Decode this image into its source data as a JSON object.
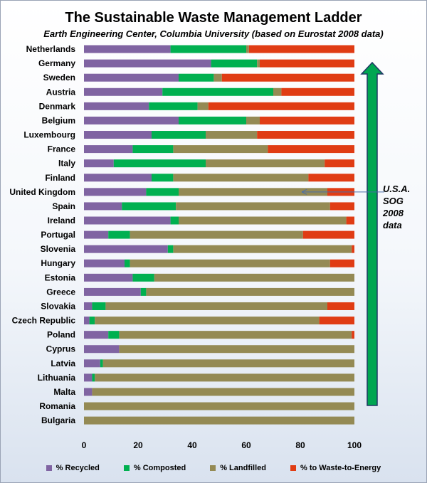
{
  "chart_data": {
    "type": "bar",
    "orientation": "horizontal",
    "stacked": true,
    "title": "The Sustainable Waste Management Ladder",
    "subtitle": "Earth Engineering Center, Columbia University (based on Eurostat 2008 data)",
    "categories": [
      "Netherlands",
      "Germany",
      "Sweden",
      "Austria",
      "Denmark",
      "Belgium",
      "Luxembourg",
      "France",
      "Italy",
      "Finland",
      "United Kingdom",
      "Spain",
      "Ireland",
      "Portugal",
      "Slovenia",
      "Hungary",
      "Estonia",
      "Greece",
      "Slovakia",
      "Czech Republic",
      "Poland",
      "Cyprus",
      "Latvia",
      "Lithuania",
      "Malta",
      "Romania",
      "Bulgaria"
    ],
    "series": [
      {
        "name": "% Recycled",
        "color": "#8064a2",
        "values": [
          32,
          47,
          35,
          29,
          24,
          35,
          25,
          18,
          11,
          25,
          23,
          14,
          32,
          9,
          31,
          15,
          18,
          21,
          3,
          2,
          9,
          13,
          6,
          3,
          3,
          0,
          0
        ]
      },
      {
        "name": "% Composted",
        "color": "#00b050",
        "values": [
          28,
          17,
          13,
          41,
          18,
          25,
          20,
          15,
          34,
          8,
          12,
          20,
          3,
          8,
          2,
          2,
          8,
          2,
          5,
          2,
          4,
          0,
          1,
          1,
          0,
          0,
          0
        ]
      },
      {
        "name": "% Landfilled",
        "color": "#948a54",
        "values": [
          1,
          1,
          3,
          3,
          4,
          5,
          19,
          35,
          44,
          50,
          55,
          57,
          62,
          64,
          66,
          74,
          74,
          77,
          82,
          83,
          86,
          87,
          93,
          96,
          97,
          100,
          100
        ]
      },
      {
        "name": "% to Waste-to-Energy",
        "color": "#e03c14",
        "values": [
          39,
          35,
          49,
          27,
          54,
          35,
          36,
          32,
          11,
          17,
          10,
          9,
          3,
          19,
          1,
          9,
          0,
          0,
          10,
          13,
          1,
          0,
          0,
          0,
          0,
          0,
          0
        ]
      }
    ],
    "xlim": [
      0,
      100
    ],
    "xticks": [
      0,
      20,
      40,
      60,
      80,
      100
    ],
    "grid": false,
    "legend_position": "bottom",
    "annotation": {
      "text_lines": [
        "U.S.A.",
        "SOG",
        "2008",
        "data"
      ],
      "points_to_category": "United Kingdom",
      "points_to_value": 80
    },
    "ladder_arrow": {
      "color": "#00a651",
      "outline": "#1f3864",
      "direction": "up"
    }
  }
}
